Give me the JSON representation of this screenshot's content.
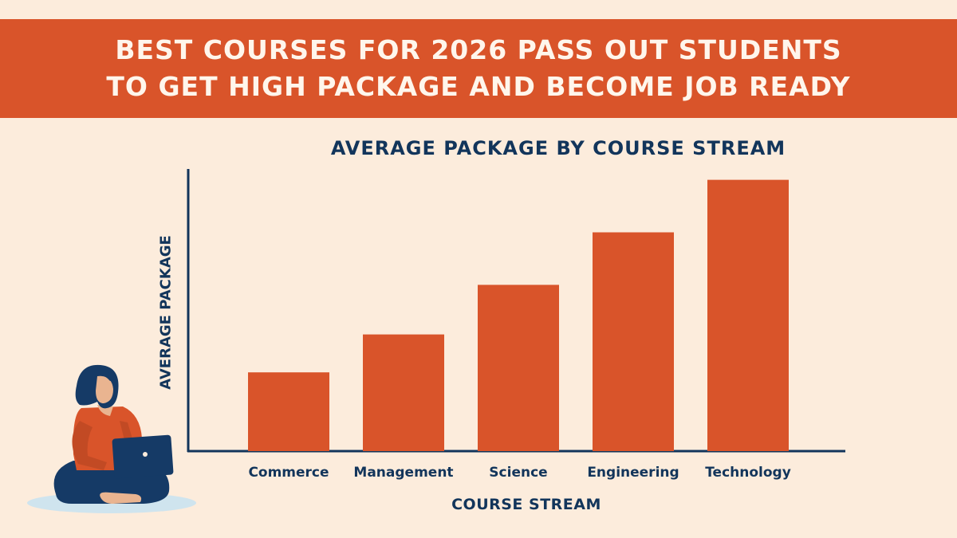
{
  "banner": {
    "line1": "BEST COURSES FOR 2026 PASS OUT STUDENTS",
    "line2": "TO GET HIGH PACKAGE AND BECOME JOB READY"
  },
  "colors": {
    "banner": "#d9542a",
    "bar": "#d9542a",
    "text": "#12355b",
    "background": "#fcecdc"
  },
  "chart_data": {
    "type": "bar",
    "title": "AVERAGE PACKAGE BY COURSE STREAM",
    "xlabel": "COURSE STREAM",
    "ylabel": "AVERAGE PACKAGE",
    "categories": [
      "Commerce",
      "Management",
      "Science",
      "Engineering",
      "Technology"
    ],
    "values": [
      27,
      40,
      57,
      75,
      93
    ],
    "ylim": [
      0,
      100
    ],
    "grid": false,
    "y_ticks_shown": false
  },
  "illustration": {
    "icon": "student-with-laptop-icon"
  }
}
